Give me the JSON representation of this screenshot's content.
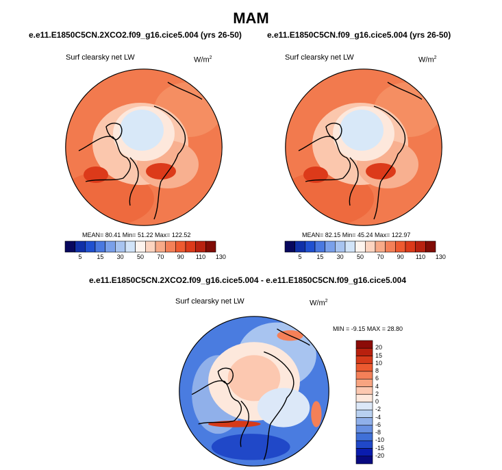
{
  "title": "MAM",
  "panels": [
    {
      "title": "e.e11.E1850C5CN.2XCO2.f09_g16.cice5.004 (yrs 26-50)",
      "variable": "Surf clearsky net LW",
      "units_base": "W/m",
      "units_exp": "2",
      "stats": "MEAN=  80.41   Min=  51.22   Max= 122.52"
    },
    {
      "title": "e.e11.E1850C5CN.f09_g16.cice5.004 (yrs 26-50)",
      "variable": "Surf clearsky net LW",
      "units_base": "W/m",
      "units_exp": "2",
      "stats": "MEAN=  82.15   Min=  45.24   Max= 122.97"
    },
    {
      "title": "e.e11.E1850C5CN.2XCO2.f09_g16.cice5.004 - e.e11.E1850C5CN.f09_g16.cice5.004",
      "variable": "Surf clearsky net LW",
      "units_base": "W/m",
      "units_exp": "2",
      "stats": "MIN = -9.15 MAX =  28.80"
    }
  ],
  "colorbar_abs": {
    "labels": [
      "5",
      "15",
      "30",
      "50",
      "70",
      "90",
      "110",
      "130"
    ],
    "colors": [
      "#08085e",
      "#1030a8",
      "#2050d0",
      "#4a78e0",
      "#7aa0ea",
      "#a8c4f0",
      "#d2e4f8",
      "#fdf4ee",
      "#fcd4c0",
      "#f8aa88",
      "#f48058",
      "#ee5a30",
      "#dc3a1a",
      "#b82210",
      "#800c06"
    ]
  },
  "colorbar_diff": {
    "labels": [
      "20",
      "15",
      "10",
      "8",
      "6",
      "4",
      "2",
      "0",
      "-2",
      "-4",
      "-6",
      "-8",
      "-10",
      "-15",
      "-20"
    ],
    "colors": [
      "#8c0c08",
      "#b8200e",
      "#d63a1a",
      "#ec5a30",
      "#f48058",
      "#f8a480",
      "#fcc8b0",
      "#fde8dc",
      "#dce8f8",
      "#b8d0f0",
      "#90b0ea",
      "#6890e2",
      "#4070d8",
      "#2048c8",
      "#0a1cae",
      "#080a80"
    ]
  },
  "chart_data": [
    {
      "type": "heatmap",
      "projection": "north polar stereographic",
      "title": "e.e11.E1850C5CN.2XCO2.f09_g16.cice5.004 (yrs 26-50)",
      "variable": "Surf clearsky net LW",
      "units": "W/m2",
      "mean": 80.41,
      "min": 51.22,
      "max": 122.52,
      "colorbar_levels": [
        5,
        15,
        30,
        50,
        70,
        90,
        110,
        130
      ]
    },
    {
      "type": "heatmap",
      "projection": "north polar stereographic",
      "title": "e.e11.E1850C5CN.f09_g16.cice5.004 (yrs 26-50)",
      "variable": "Surf clearsky net LW",
      "units": "W/m2",
      "mean": 82.15,
      "min": 45.24,
      "max": 122.97,
      "colorbar_levels": [
        5,
        15,
        30,
        50,
        70,
        90,
        110,
        130
      ]
    },
    {
      "type": "heatmap",
      "projection": "north polar stereographic",
      "title": "e.e11.E1850C5CN.2XCO2.f09_g16.cice5.004 - e.e11.E1850C5CN.f09_g16.cice5.004",
      "variable": "Surf clearsky net LW",
      "units": "W/m2",
      "min": -9.15,
      "max": 28.8,
      "colorbar_levels": [
        20,
        15,
        10,
        8,
        6,
        4,
        2,
        0,
        -2,
        -4,
        -6,
        -8,
        -10,
        -15,
        -20
      ]
    }
  ]
}
